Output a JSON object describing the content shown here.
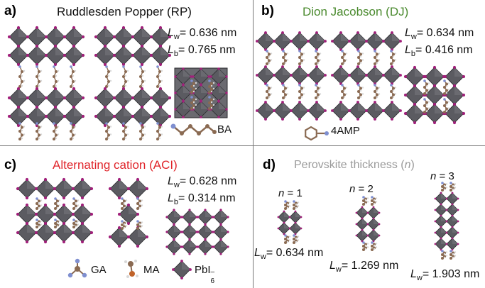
{
  "panels": {
    "a": {
      "letter": "a)",
      "title": "Ruddlesden Popper (RP)",
      "title_color": "#111111",
      "Lw_value": "= 0.636 nm",
      "Lb_value": "= 0.765 nm",
      "spacer": "BA"
    },
    "b": {
      "letter": "b)",
      "title": "Dion Jacobson (DJ)",
      "title_color": "#4a8a2e",
      "Lw_value": "= 0.634 nm",
      "Lb_value": "= 0.416 nm",
      "spacer": "4AMP"
    },
    "c": {
      "letter": "c)",
      "title": "Alternating cation (ACI)",
      "title_color": "#e0252b",
      "Lw_value": "= 0.628 nm",
      "Lb_value": "= 0.314 nm",
      "legend": [
        "GA",
        "MA",
        "PbI"
      ],
      "legend_sup": "–",
      "legend_sub": "6"
    },
    "d": {
      "letter": "d)",
      "title_main": "Perovskite thickness (",
      "title_var": "n",
      "title_end": ")",
      "title_color": "#9a9a9a",
      "n_values": [
        "= 1",
        "= 2",
        "= 3"
      ],
      "Lw_values": [
        "= 0.634 nm",
        "= 1.269 nm",
        "= 1.903 nm"
      ]
    }
  },
  "symbols": {
    "L": "L",
    "w": "w",
    "b": "b",
    "n": "n"
  },
  "colors": {
    "octahedron": "#5b5b61",
    "octahedron_edge": "#2a2a2e",
    "iodide": "#a0207a",
    "carbon": "#8a6a52",
    "nitrogen": "#7f8fd0",
    "hydrogen": "#d8d8d8"
  }
}
